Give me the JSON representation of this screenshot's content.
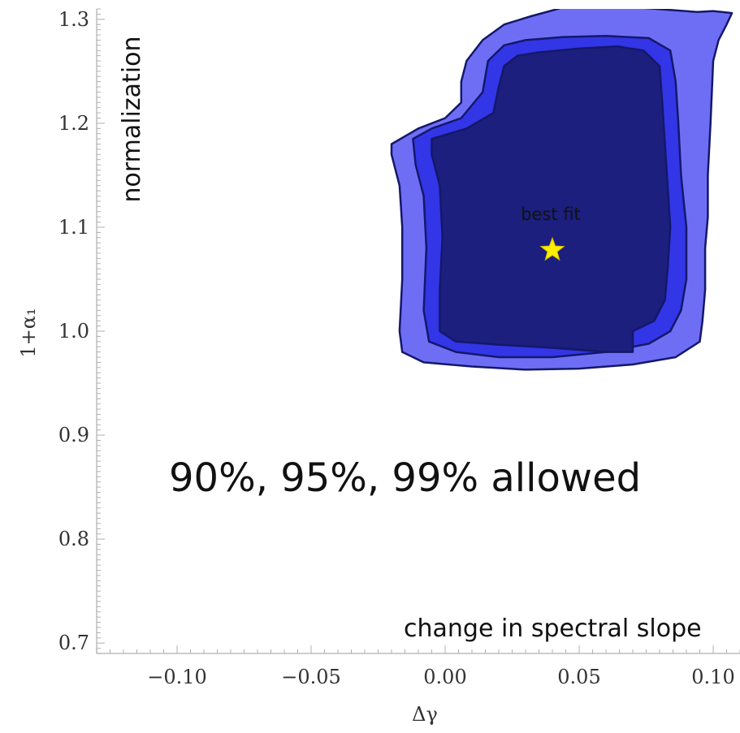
{
  "chart_data": {
    "type": "contour",
    "xlabel": "Δγ",
    "ylabel": "1+α₁",
    "xlim": [
      -0.13,
      0.11
    ],
    "ylim": [
      0.69,
      1.31
    ],
    "x_ticks": [
      -0.1,
      -0.05,
      0.0,
      0.05,
      0.1
    ],
    "x_tick_labels": [
      "−0.10",
      "−0.05",
      "0.00",
      "0.05",
      "0.10"
    ],
    "y_ticks": [
      0.7,
      0.8,
      0.9,
      1.0,
      1.1,
      1.2,
      1.3
    ],
    "y_tick_labels": [
      "0.7",
      "0.8",
      "0.9",
      "1.0",
      "1.1",
      "1.2",
      "1.3"
    ],
    "grid": false,
    "colors": {
      "region_90": "#1c1f7d",
      "region_95": "#3236e6",
      "region_99": "#6e6ef5",
      "outline": "#14186a",
      "best_fit_marker": "#ffee00",
      "frame": "#bdbdbd"
    },
    "regions": [
      {
        "level": "99%",
        "points": [
          [
            0.046,
            1.314
          ],
          [
            0.062,
            1.312
          ],
          [
            0.074,
            1.311
          ],
          [
            0.084,
            1.309
          ],
          [
            0.094,
            1.307
          ],
          [
            0.1,
            1.308
          ],
          [
            0.107,
            1.306
          ],
          [
            0.105,
            1.295
          ],
          [
            0.102,
            1.28
          ],
          [
            0.1,
            1.26
          ],
          [
            0.099,
            1.2
          ],
          [
            0.098,
            1.15
          ],
          [
            0.098,
            1.11
          ],
          [
            0.097,
            1.08
          ],
          [
            0.097,
            1.04
          ],
          [
            0.096,
            1.01
          ],
          [
            0.095,
            0.99
          ],
          [
            0.086,
            0.975
          ],
          [
            0.07,
            0.968
          ],
          [
            0.05,
            0.964
          ],
          [
            0.03,
            0.963
          ],
          [
            0.01,
            0.966
          ],
          [
            -0.008,
            0.97
          ],
          [
            -0.016,
            0.98
          ],
          [
            -0.017,
            1.0
          ],
          [
            -0.016,
            1.05
          ],
          [
            -0.016,
            1.1
          ],
          [
            -0.017,
            1.14
          ],
          [
            -0.02,
            1.17
          ],
          [
            -0.02,
            1.18
          ],
          [
            -0.01,
            1.195
          ],
          [
            0.0,
            1.205
          ],
          [
            0.006,
            1.22
          ],
          [
            0.006,
            1.24
          ],
          [
            0.008,
            1.26
          ],
          [
            0.014,
            1.28
          ],
          [
            0.022,
            1.295
          ],
          [
            0.032,
            1.303
          ],
          [
            0.042,
            1.31
          ]
        ]
      },
      {
        "level": "95%",
        "points": [
          [
            0.03,
            1.28
          ],
          [
            0.044,
            1.283
          ],
          [
            0.06,
            1.284
          ],
          [
            0.076,
            1.282
          ],
          [
            0.084,
            1.27
          ],
          [
            0.086,
            1.24
          ],
          [
            0.087,
            1.2
          ],
          [
            0.088,
            1.15
          ],
          [
            0.09,
            1.1
          ],
          [
            0.09,
            1.05
          ],
          [
            0.088,
            1.02
          ],
          [
            0.084,
            1.0
          ],
          [
            0.076,
            0.988
          ],
          [
            0.06,
            0.98
          ],
          [
            0.04,
            0.975
          ],
          [
            0.02,
            0.975
          ],
          [
            0.004,
            0.98
          ],
          [
            -0.006,
            0.99
          ],
          [
            -0.008,
            1.02
          ],
          [
            -0.007,
            1.08
          ],
          [
            -0.008,
            1.13
          ],
          [
            -0.011,
            1.16
          ],
          [
            -0.012,
            1.185
          ],
          [
            -0.005,
            1.195
          ],
          [
            0.006,
            1.205
          ],
          [
            0.014,
            1.23
          ],
          [
            0.016,
            1.26
          ],
          [
            0.022,
            1.275
          ]
        ]
      },
      {
        "level": "90%",
        "points": [
          [
            0.034,
            1.268
          ],
          [
            0.05,
            1.272
          ],
          [
            0.064,
            1.274
          ],
          [
            0.074,
            1.27
          ],
          [
            0.08,
            1.255
          ],
          [
            0.081,
            1.22
          ],
          [
            0.082,
            1.18
          ],
          [
            0.083,
            1.14
          ],
          [
            0.084,
            1.1
          ],
          [
            0.083,
            1.06
          ],
          [
            0.082,
            1.03
          ],
          [
            0.078,
            1.01
          ],
          [
            0.07,
            1.0
          ],
          [
            0.07,
            0.98
          ],
          [
            0.06,
            0.98
          ],
          [
            0.04,
            0.984
          ],
          [
            0.02,
            0.987
          ],
          [
            0.004,
            0.99
          ],
          [
            -0.002,
            1.0
          ],
          [
            -0.002,
            1.04
          ],
          [
            -0.001,
            1.09
          ],
          [
            -0.002,
            1.14
          ],
          [
            -0.005,
            1.17
          ],
          [
            -0.005,
            1.185
          ],
          [
            0.008,
            1.195
          ],
          [
            0.018,
            1.21
          ],
          [
            0.02,
            1.235
          ],
          [
            0.022,
            1.255
          ],
          [
            0.027,
            1.265
          ]
        ]
      }
    ],
    "best_fit": {
      "x": 0.04,
      "y": 1.078,
      "label": "best fit"
    },
    "annotations": {
      "normalization": "normalization",
      "allowed": "90%, 95%, 99% allowed",
      "slope": "change in spectral slope"
    }
  }
}
